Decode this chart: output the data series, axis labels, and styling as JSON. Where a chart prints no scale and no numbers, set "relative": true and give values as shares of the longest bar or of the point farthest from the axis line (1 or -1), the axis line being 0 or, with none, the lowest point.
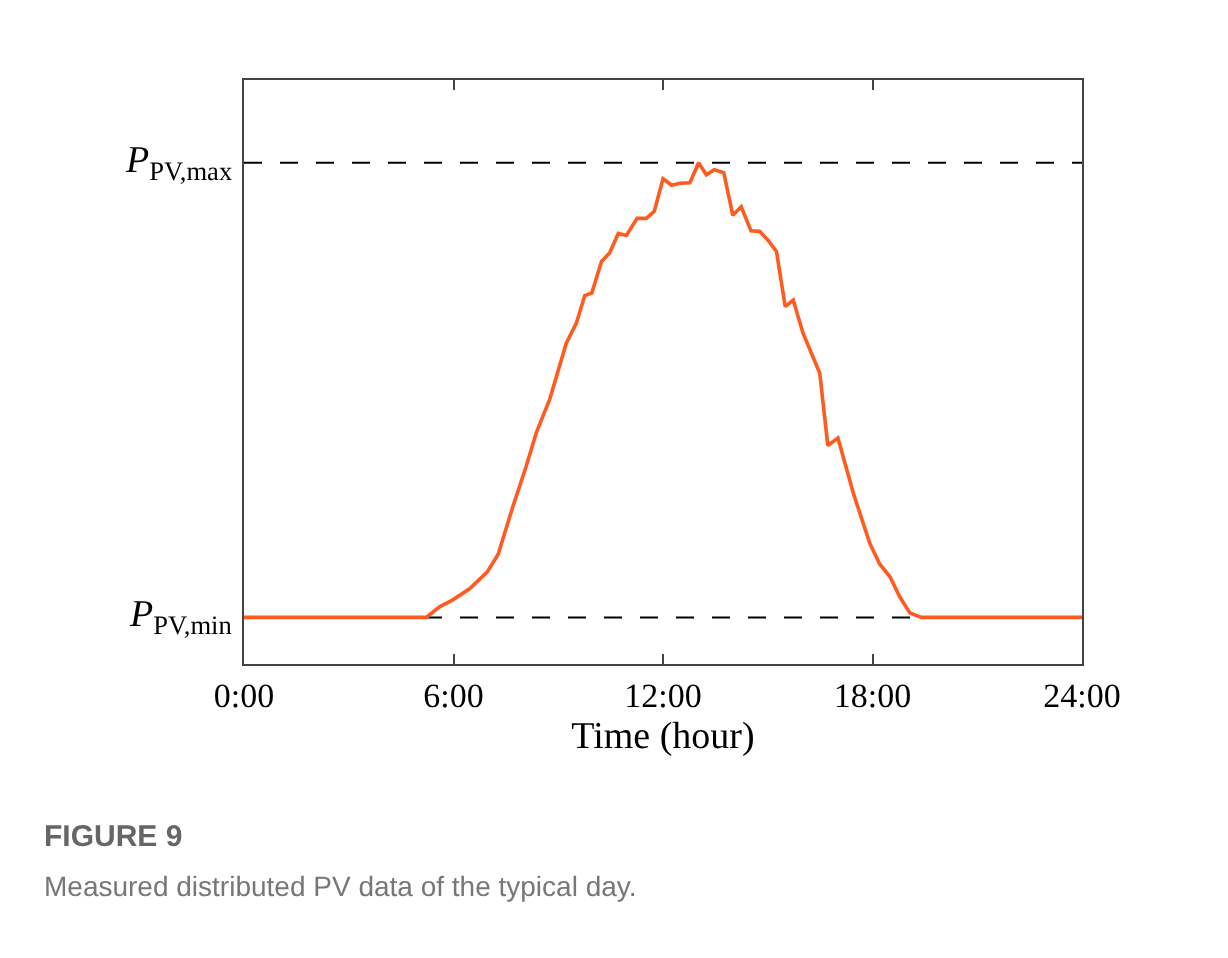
{
  "chart_data": {
    "type": "line",
    "xlabel": "Time (hour)",
    "x": [
      0,
      5.22,
      5.6,
      5.98,
      6.46,
      6.97,
      7.28,
      7.7,
      8.08,
      8.37,
      8.76,
      9.23,
      9.52,
      9.76,
      9.96,
      10.24,
      10.47,
      10.72,
      10.95,
      11.26,
      11.52,
      11.75,
      12.0,
      12.25,
      12.48,
      12.77,
      13.02,
      13.24,
      13.47,
      13.74,
      14.0,
      14.24,
      14.52,
      14.77,
      15.0,
      15.25,
      15.5,
      15.73,
      16.01,
      16.49,
      16.72,
      17.01,
      17.45,
      17.92,
      18.21,
      18.5,
      18.78,
      19.07,
      19.4,
      24
    ],
    "series": [
      {
        "color": "#ff5a1f",
        "values": [
          0.093,
          0.093,
          0.114,
          0.128,
          0.15,
          0.184,
          0.219,
          0.314,
          0.394,
          0.461,
          0.529,
          0.64,
          0.68,
          0.735,
          0.74,
          0.803,
          0.82,
          0.859,
          0.855,
          0.889,
          0.889,
          0.903,
          0.968,
          0.955,
          0.959,
          0.96,
          1.0,
          0.976,
          0.986,
          0.98,
          0.895,
          0.912,
          0.864,
          0.863,
          0.846,
          0.823,
          0.713,
          0.726,
          0.66,
          0.58,
          0.436,
          0.451,
          0.341,
          0.241,
          0.199,
          0.174,
          0.134,
          0.102,
          0.093,
          0.093
        ]
      }
    ],
    "relative": true,
    "xlim": [
      0,
      24
    ],
    "xticks": [
      {
        "value": 0,
        "label": "0:00"
      },
      {
        "value": 6,
        "label": "6:00"
      },
      {
        "value": 12,
        "label": "12:00"
      },
      {
        "value": 18,
        "label": "18:00"
      },
      {
        "value": 24,
        "label": "24:00"
      }
    ],
    "ref_lines": [
      {
        "axis": "y",
        "value": 0.093,
        "label": "P$_{PV,min}$",
        "color": "#000000",
        "line_style": "dashed"
      },
      {
        "axis": "y",
        "value": 1,
        "label": "P$_{PV,max}$",
        "color": "#000000",
        "line_style": "dashed"
      }
    ],
    "grid": false,
    "marker": "none",
    "line_style": "solid",
    "annotations": [
      "FIGURE 9",
      "Measured distributed PV data of the typical day."
    ]
  }
}
